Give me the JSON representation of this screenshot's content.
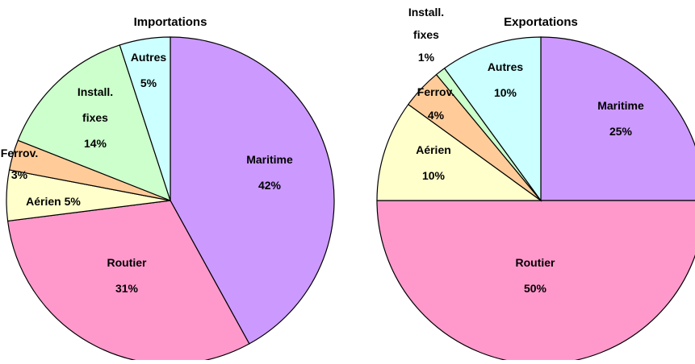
{
  "chart_data": [
    {
      "type": "pie",
      "title": "Importations",
      "start_angle_deg": 0,
      "direction": "clockwise",
      "slices": [
        {
          "label": "Maritime",
          "value": 42,
          "value_text": "42%",
          "color": "#cc99ff"
        },
        {
          "label": "Routier",
          "value": 31,
          "value_text": "31%",
          "color": "#ff99cc"
        },
        {
          "label": "Aérien",
          "value": 5,
          "value_text": "5%",
          "color": "#ffffcc"
        },
        {
          "label": "Ferrov.",
          "value": 3,
          "value_text": "3%",
          "color": "#ffcc99"
        },
        {
          "label": "Install. fixes",
          "value": 14,
          "value_text": "14%",
          "color": "#ccffcc"
        },
        {
          "label": "Autres",
          "value": 5,
          "value_text": "5%",
          "color": "#ccffff"
        }
      ]
    },
    {
      "type": "pie",
      "title": "Exportations",
      "start_angle_deg": 0,
      "direction": "clockwise",
      "slices": [
        {
          "label": "Maritime",
          "value": 25,
          "value_text": "25%",
          "color": "#cc99ff"
        },
        {
          "label": "Routier",
          "value": 50,
          "value_text": "50%",
          "color": "#ff99cc"
        },
        {
          "label": "Aérien",
          "value": 10,
          "value_text": "10%",
          "color": "#ffffcc"
        },
        {
          "label": "Ferrov.",
          "value": 4,
          "value_text": "4%",
          "color": "#ffcc99"
        },
        {
          "label": "Install. fixes",
          "value": 1,
          "value_text": "1%",
          "color": "#ccffcc"
        },
        {
          "label": "Autres",
          "value": 10,
          "value_text": "10%",
          "color": "#ccffff"
        }
      ]
    }
  ]
}
